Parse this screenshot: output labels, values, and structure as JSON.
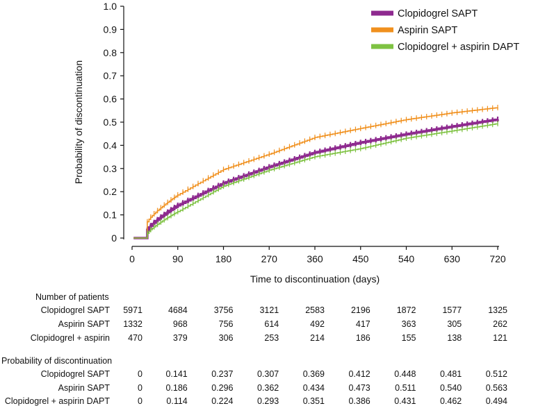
{
  "chart_data": {
    "type": "line",
    "xlabel": "Time to discontinuation (days)",
    "ylabel": "Probability of discontinuation",
    "xlim": [
      0,
      720
    ],
    "ylim": [
      0,
      1.0
    ],
    "x_ticks": [
      "0",
      "90",
      "180",
      "270",
      "360",
      "450",
      "540",
      "630",
      "720"
    ],
    "y_ticks": [
      "0",
      "0.1",
      "0.2",
      "0.3",
      "0.4",
      "0.5",
      "0.6",
      "0.7",
      "0.8",
      "0.9",
      "1.0"
    ],
    "x": [
      0,
      90,
      180,
      270,
      360,
      450,
      540,
      630,
      720
    ],
    "series": [
      {
        "name": "Clopidogrel SAPT",
        "color": "#8e2a8f",
        "values": [
          0,
          0.141,
          0.237,
          0.307,
          0.369,
          0.412,
          0.448,
          0.481,
          0.512
        ]
      },
      {
        "name": "Aspirin SAPT",
        "color": "#f0901e",
        "values": [
          0,
          0.186,
          0.296,
          0.362,
          0.434,
          0.473,
          0.511,
          0.54,
          0.563
        ]
      },
      {
        "name": "Clopidogrel + aspirin DAPT",
        "color": "#7ec242",
        "values": [
          0,
          0.114,
          0.224,
          0.293,
          0.351,
          0.386,
          0.431,
          0.462,
          0.494
        ]
      }
    ],
    "legend_position": "top-right",
    "grid": false
  },
  "tables": {
    "patients": {
      "title": "Number of patients",
      "rows": [
        {
          "label": "Clopidogrel SAPT",
          "values": [
            "5971",
            "4684",
            "3756",
            "3121",
            "2583",
            "2196",
            "1872",
            "1577",
            "1325"
          ]
        },
        {
          "label": "Aspirin SAPT",
          "values": [
            "1332",
            "968",
            "756",
            "614",
            "492",
            "417",
            "363",
            "305",
            "262"
          ]
        },
        {
          "label": "Clopidogrel + aspirin",
          "values": [
            "470",
            "379",
            "306",
            "253",
            "214",
            "186",
            "155",
            "138",
            "121"
          ]
        }
      ]
    },
    "probability": {
      "title": "Probability of discontinuation",
      "rows": [
        {
          "label": "Clopidogrel SAPT",
          "values": [
            "0",
            "0.141",
            "0.237",
            "0.307",
            "0.369",
            "0.412",
            "0.448",
            "0.481",
            "0.512"
          ]
        },
        {
          "label": "Aspirin SAPT",
          "values": [
            "0",
            "0.186",
            "0.296",
            "0.362",
            "0.434",
            "0.473",
            "0.511",
            "0.540",
            "0.563"
          ]
        },
        {
          "label": "Clopidogrel + aspirin DAPT",
          "values": [
            "0",
            "0.114",
            "0.224",
            "0.293",
            "0.351",
            "0.386",
            "0.431",
            "0.462",
            "0.494"
          ]
        }
      ]
    }
  }
}
